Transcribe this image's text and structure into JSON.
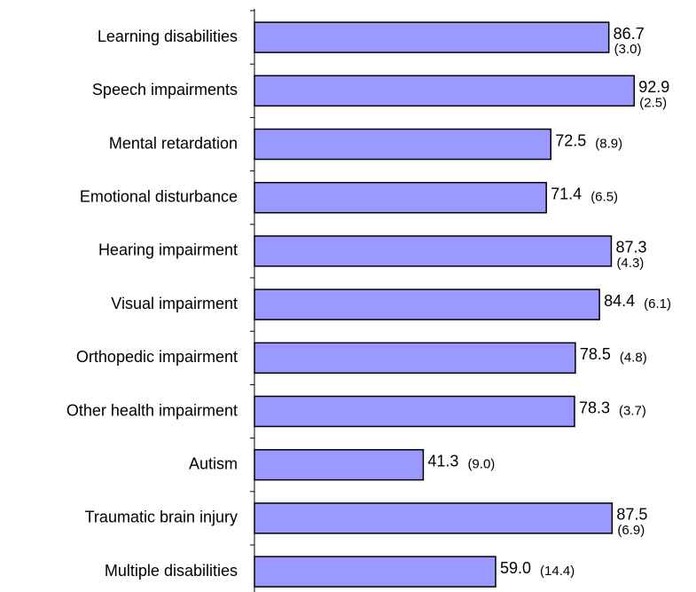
{
  "chart_data": {
    "type": "barh",
    "categories": [
      "Learning disabilities",
      "Speech impairments",
      "Mental retardation",
      "Emotional disturbance",
      "Hearing impairment",
      "Visual impairment",
      "Orthopedic impairment",
      "Other health impairment",
      "Autism",
      "Traumatic brain injury",
      "Multiple disabilities"
    ],
    "values": [
      86.7,
      92.9,
      72.5,
      71.4,
      87.3,
      84.4,
      78.5,
      78.3,
      41.3,
      87.5,
      59.0
    ],
    "value_labels": [
      "86.7",
      "92.9",
      "72.5",
      "71.4",
      "87.3",
      "84.4",
      "78.5",
      "78.3",
      "41.3",
      "87.5",
      "59.0"
    ],
    "errors": [
      3.0,
      2.5,
      8.9,
      6.5,
      4.3,
      6.1,
      4.8,
      3.7,
      9.0,
      6.9,
      14.4
    ],
    "error_labels": [
      "(3.0)",
      "(2.5)",
      "(8.9)",
      "(6.5)",
      "(4.3)",
      "(6.1)",
      "(4.8)",
      "(3.7)",
      "(9.0)",
      "(6.9)",
      "(14.4)"
    ],
    "color": "#9999ff",
    "xlim": [
      0,
      100
    ]
  }
}
